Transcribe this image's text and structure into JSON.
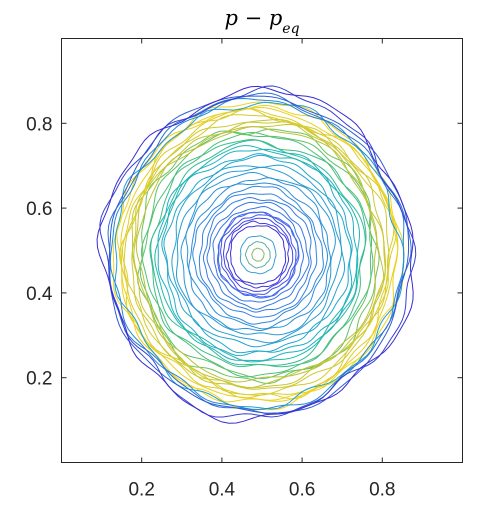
{
  "chart_data": {
    "type": "contour",
    "title": "p − p",
    "title_subscript": "eq",
    "xlabel": "",
    "ylabel": "",
    "xlim": [
      0,
      1
    ],
    "ylim": [
      0,
      1
    ],
    "x_ticks": [
      0.2,
      0.4,
      0.6,
      0.8
    ],
    "x_tick_labels": [
      "0.2",
      "0.4",
      "0.6",
      "0.8"
    ],
    "y_ticks": [
      0.2,
      0.4,
      0.6,
      0.8
    ],
    "y_tick_labels": [
      "0.2",
      "0.4",
      "0.6",
      "0.8"
    ],
    "grid": false,
    "colormap": "parula",
    "center": [
      0.49,
      0.49
    ],
    "bands": [
      {
        "name": "core",
        "r_min": 0.0,
        "r_max": 0.045,
        "levels": 4,
        "color_from": "#a8c830",
        "color_to": "#3a9fd0"
      },
      {
        "name": "inner-dark-ring",
        "r_min": 0.07,
        "r_max": 0.1,
        "levels": 5,
        "color_from": "#3b2fd6",
        "color_to": "#4a5cf0"
      },
      {
        "name": "middle-blue",
        "r_min": 0.1,
        "r_max": 0.25,
        "levels": 14,
        "color_from": "#3b6fe8",
        "color_to": "#1fb0c8"
      },
      {
        "name": "mid-ring",
        "r_min": 0.25,
        "r_max": 0.3,
        "levels": 6,
        "color_from": "#20b9a8",
        "color_to": "#6cc35a"
      },
      {
        "name": "outer-yellow",
        "r_min": 0.3,
        "r_max": 0.355,
        "levels": 10,
        "color_from": "#b9c23a",
        "color_to": "#f4d41c"
      },
      {
        "name": "outer-edge",
        "r_min": 0.355,
        "r_max": 0.385,
        "levels": 6,
        "color_from": "#1fa0d8",
        "color_to": "#3d2ad0"
      }
    ]
  }
}
